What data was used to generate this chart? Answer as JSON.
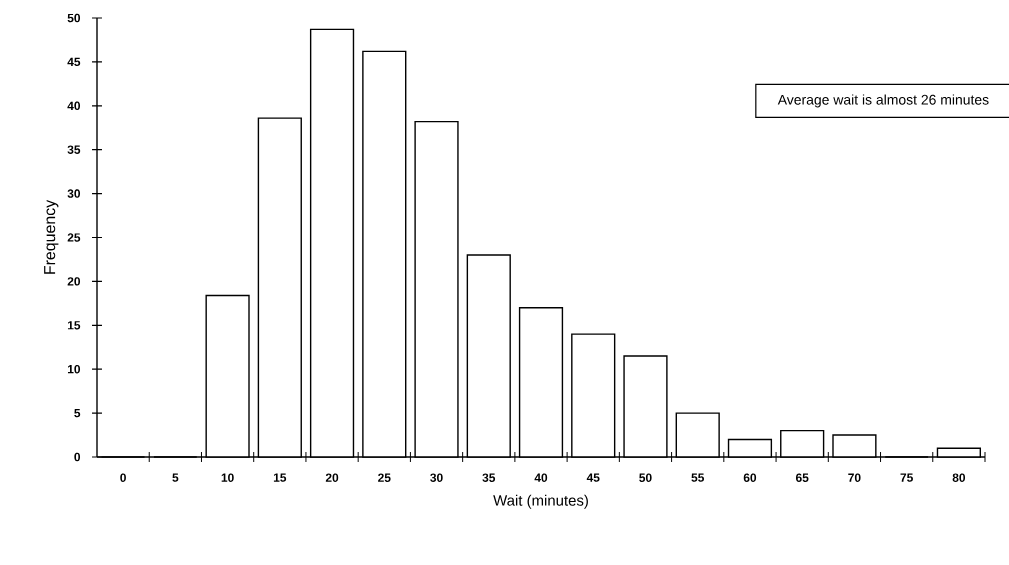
{
  "chart_data": {
    "type": "bar",
    "xlabel": "Wait (minutes)",
    "ylabel": "Frequency",
    "categories": [
      "0",
      "5",
      "10",
      "15",
      "20",
      "25",
      "30",
      "35",
      "40",
      "45",
      "50",
      "55",
      "60",
      "65",
      "70",
      "75",
      "80"
    ],
    "values": [
      0,
      0,
      18.4,
      38.6,
      48.7,
      46.2,
      38.2,
      23,
      17,
      14,
      11.5,
      5,
      2,
      3,
      2.5,
      0,
      1
    ],
    "color": "#ffffff",
    "ylim": [
      0,
      50
    ],
    "yticks": [
      0,
      5,
      10,
      15,
      20,
      25,
      30,
      35,
      40,
      45,
      50
    ],
    "annotations": [
      "Average wait is almost 26 minutes"
    ]
  }
}
